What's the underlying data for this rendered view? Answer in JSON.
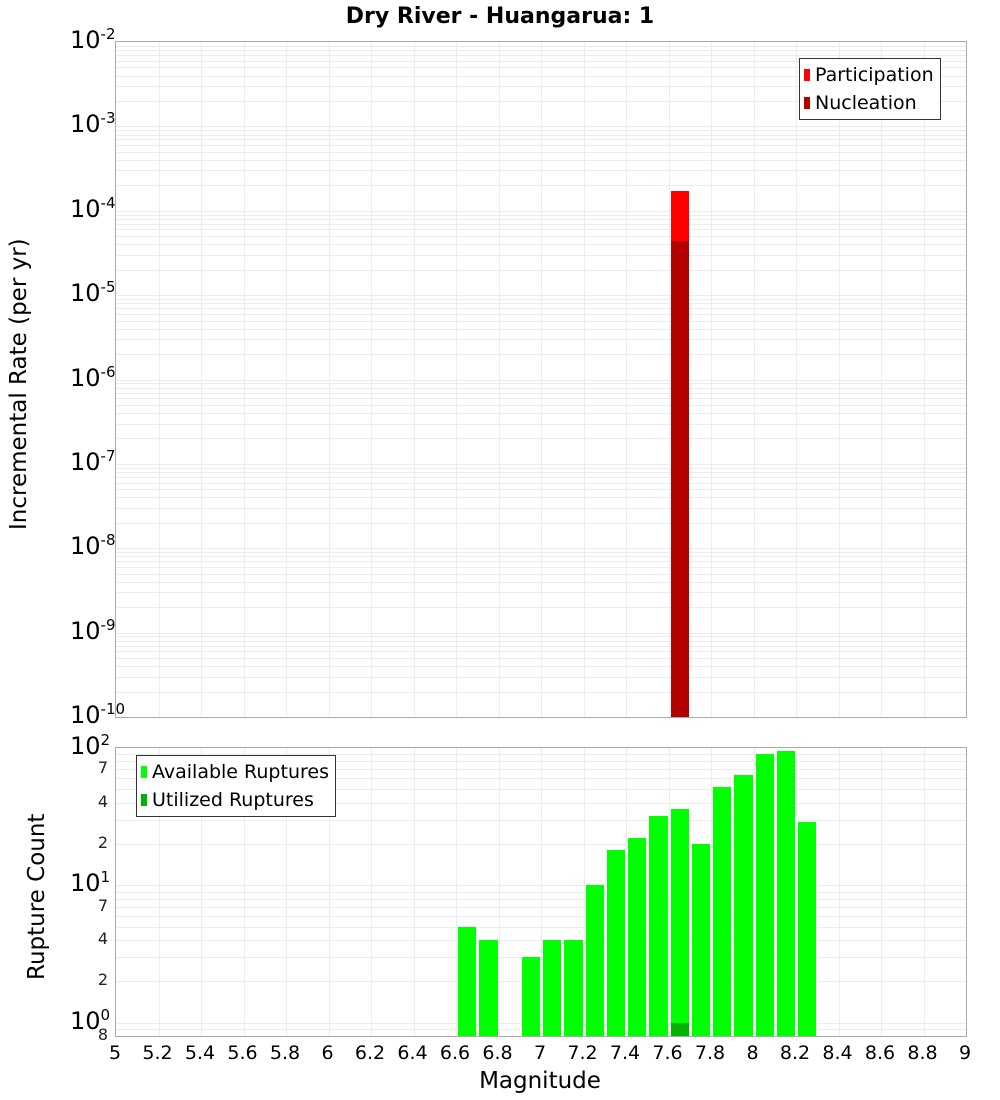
{
  "title": "Dry River - Huangarua: 1",
  "top_chart": {
    "ylabel": "Incremental Rate (per yr)",
    "yticks": [
      "-2",
      "-3",
      "-4",
      "-5",
      "-6",
      "-7",
      "-8",
      "-9",
      "-10"
    ],
    "legend": [
      {
        "label": "Participation",
        "color": "#ff0000"
      },
      {
        "label": "Nucleation",
        "color": "#b30000"
      }
    ]
  },
  "bottom_chart": {
    "ylabel": "Rupture Count",
    "yticks_major": [
      "2",
      "1",
      "0"
    ],
    "yticks_minor": [
      "7",
      "4",
      "2",
      "7",
      "4",
      "2",
      "8"
    ],
    "legend": [
      {
        "label": "Available Ruptures",
        "color": "#00ff00"
      },
      {
        "label": "Utilized Ruptures",
        "color": "#00b300"
      }
    ]
  },
  "xlabel": "Magnitude",
  "xticks": [
    "5",
    "5.2",
    "5.4",
    "5.6",
    "5.8",
    "6",
    "6.2",
    "6.4",
    "6.6",
    "6.8",
    "7",
    "7.2",
    "7.4",
    "7.6",
    "7.8",
    "8",
    "8.2",
    "8.4",
    "8.6",
    "8.8",
    "9"
  ],
  "chart_data": [
    {
      "type": "bar",
      "title": "Dry River - Huangarua: 1",
      "xlabel": "Magnitude",
      "ylabel": "Incremental Rate (per yr)",
      "yscale": "log",
      "xlim": [
        5,
        9
      ],
      "ylim": [
        1e-10,
        0.01
      ],
      "legend_position": "top-right",
      "grid": true,
      "series": [
        {
          "name": "Participation",
          "color": "#ff0000",
          "x": [
            7.65
          ],
          "values": [
            0.00017
          ]
        },
        {
          "name": "Nucleation",
          "color": "#b30000",
          "x": [
            7.65
          ],
          "values": [
            4.4e-05
          ]
        }
      ]
    },
    {
      "type": "bar",
      "xlabel": "Magnitude",
      "ylabel": "Rupture Count",
      "yscale": "log",
      "xlim": [
        5,
        9
      ],
      "ylim": [
        0.8,
        100
      ],
      "legend_position": "top-left",
      "grid": true,
      "x": [
        6.65,
        6.75,
        6.95,
        7.05,
        7.15,
        7.25,
        7.35,
        7.45,
        7.55,
        7.65,
        7.75,
        7.85,
        7.95,
        8.05,
        8.15,
        8.25
      ],
      "series": [
        {
          "name": "Available Ruptures",
          "color": "#00ff00",
          "values": [
            5,
            4,
            3,
            4,
            4,
            10,
            18,
            22,
            32,
            36,
            20,
            52,
            64,
            90,
            95,
            29
          ]
        },
        {
          "name": "Utilized Ruptures",
          "color": "#00b300",
          "values": [
            0,
            0,
            0,
            0,
            0,
            0,
            0,
            0,
            0,
            1,
            0,
            0,
            0,
            0,
            0,
            0
          ]
        }
      ]
    }
  ]
}
